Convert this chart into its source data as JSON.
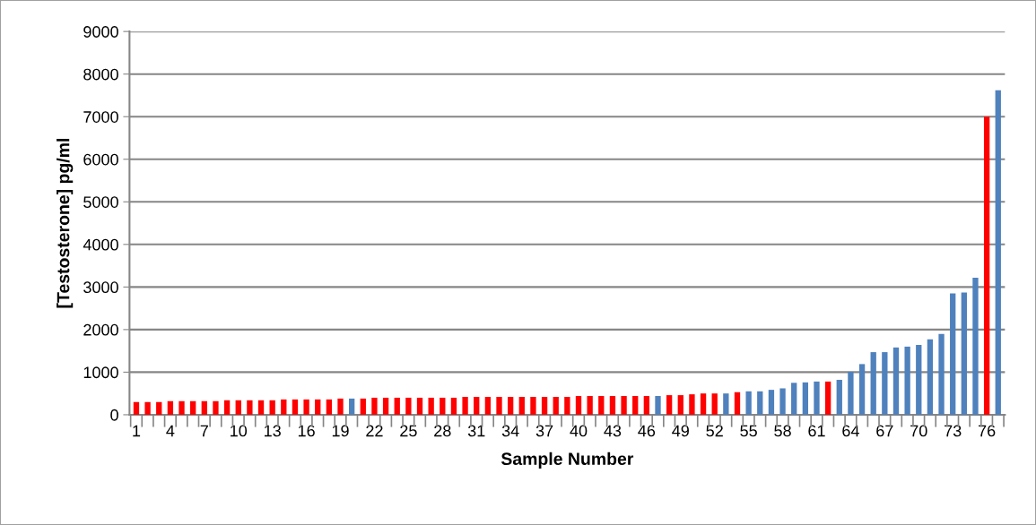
{
  "chart_data": {
    "type": "bar",
    "xlabel": "Sample Number",
    "ylabel": "[Testosterone] pg/ml",
    "categories": [
      "1",
      null,
      null,
      "4",
      null,
      null,
      "7",
      null,
      null,
      "10",
      null,
      null,
      "13",
      null,
      null,
      "16",
      null,
      null,
      "19",
      null,
      null,
      "22",
      null,
      null,
      "25",
      null,
      null,
      "28",
      null,
      null,
      "31",
      null,
      null,
      "34",
      null,
      null,
      "37",
      null,
      null,
      "40",
      null,
      null,
      "43",
      null,
      null,
      "46",
      null,
      null,
      "49",
      null,
      null,
      "52",
      null,
      null,
      "55",
      null,
      null,
      "58",
      null,
      null,
      "61",
      null,
      null,
      "64",
      null,
      null,
      "67",
      null,
      null,
      "70",
      null,
      null,
      "73",
      null,
      null,
      "76",
      null
    ],
    "values": [
      300,
      300,
      300,
      320,
      320,
      320,
      320,
      320,
      340,
      340,
      340,
      340,
      340,
      360,
      360,
      360,
      360,
      360,
      380,
      380,
      380,
      400,
      400,
      400,
      400,
      400,
      400,
      400,
      400,
      420,
      420,
      420,
      420,
      420,
      420,
      420,
      420,
      420,
      420,
      440,
      440,
      440,
      440,
      440,
      440,
      440,
      440,
      460,
      460,
      480,
      500,
      500,
      500,
      530,
      550,
      550,
      585,
      620,
      750,
      760,
      780,
      780,
      820,
      1010,
      1190,
      1470,
      1470,
      1580,
      1600,
      1640,
      1770,
      1900,
      2850,
      2870,
      3220,
      7000,
      7620
    ],
    "colors": [
      "#ff0000",
      "#ff0000",
      "#ff0000",
      "#ff0000",
      "#ff0000",
      "#ff0000",
      "#ff0000",
      "#ff0000",
      "#ff0000",
      "#ff0000",
      "#ff0000",
      "#ff0000",
      "#ff0000",
      "#ff0000",
      "#ff0000",
      "#ff0000",
      "#ff0000",
      "#ff0000",
      "#ff0000",
      "#4f81bd",
      "#ff0000",
      "#ff0000",
      "#ff0000",
      "#ff0000",
      "#ff0000",
      "#ff0000",
      "#ff0000",
      "#ff0000",
      "#ff0000",
      "#ff0000",
      "#ff0000",
      "#ff0000",
      "#ff0000",
      "#ff0000",
      "#ff0000",
      "#ff0000",
      "#ff0000",
      "#ff0000",
      "#ff0000",
      "#ff0000",
      "#ff0000",
      "#ff0000",
      "#ff0000",
      "#ff0000",
      "#ff0000",
      "#ff0000",
      "#4f81bd",
      "#ff0000",
      "#ff0000",
      "#ff0000",
      "#ff0000",
      "#ff0000",
      "#4f81bd",
      "#ff0000",
      "#4f81bd",
      "#4f81bd",
      "#4f81bd",
      "#4f81bd",
      "#4f81bd",
      "#4f81bd",
      "#4f81bd",
      "#ff0000",
      "#4f81bd",
      "#4f81bd",
      "#4f81bd",
      "#4f81bd",
      "#4f81bd",
      "#4f81bd",
      "#4f81bd",
      "#4f81bd",
      "#4f81bd",
      "#4f81bd",
      "#4f81bd",
      "#4f81bd",
      "#4f81bd",
      "#ff0000",
      "#4f81bd"
    ],
    "ylim": [
      0,
      9000
    ],
    "yticks": [
      0,
      1000,
      2000,
      3000,
      4000,
      5000,
      6000,
      7000,
      8000,
      9000
    ],
    "grid": "y",
    "legend": false
  }
}
